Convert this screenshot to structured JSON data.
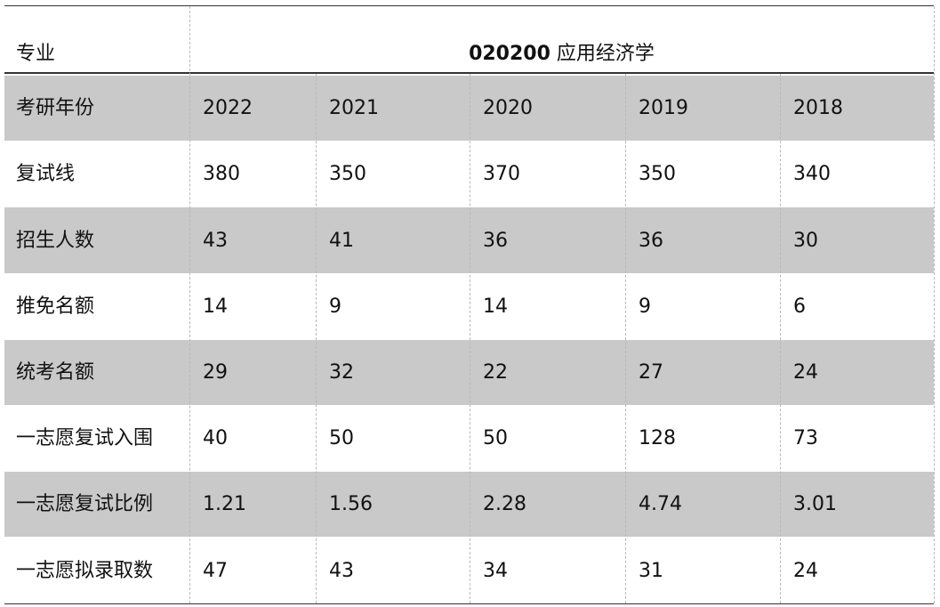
{
  "header": {
    "label": "专业",
    "code": "020200",
    "name": "应用经济学"
  },
  "table": {
    "columns": [
      "考研年份",
      "2022",
      "2021",
      "2020",
      "2019",
      "2018"
    ],
    "rows": [
      [
        "复试线",
        380,
        350,
        370,
        350,
        340
      ],
      [
        "招生人数",
        43,
        41,
        36,
        36,
        30
      ],
      [
        "推免名额",
        14,
        9,
        14,
        9,
        6
      ],
      [
        "统考名额",
        29,
        32,
        22,
        27,
        24
      ],
      [
        "一志愿复试入围",
        40,
        50,
        50,
        128,
        73
      ],
      [
        "一志愿复试比例",
        1.21,
        1.56,
        2.28,
        4.74,
        3.01
      ],
      [
        "一志愿拟录取数",
        47,
        43,
        34,
        31,
        24
      ]
    ]
  }
}
